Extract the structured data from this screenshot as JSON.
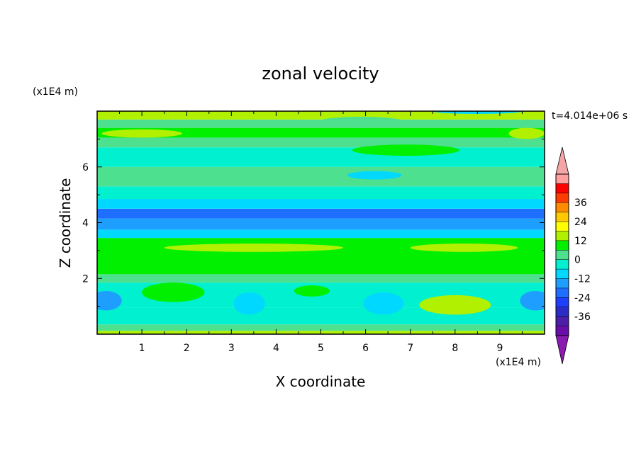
{
  "chart_data": {
    "type": "heatmap",
    "title": "zonal velocity",
    "xlabel": "X coordinate",
    "ylabel": "Z coordinate",
    "x_unit": "(x1E4 m)",
    "y_unit": "(x1E4 m)",
    "time_label": "t=4.014e+06 s",
    "xlim": [
      0,
      10
    ],
    "ylim": [
      0,
      8
    ],
    "x_ticks": [
      "1",
      "2",
      "3",
      "4",
      "5",
      "6",
      "7",
      "8",
      "9"
    ],
    "y_ticks": [
      "2",
      "4",
      "6"
    ],
    "colorbar": {
      "labels": [
        "36",
        "24",
        "12",
        "0",
        "-12",
        "-24",
        "-36"
      ],
      "levels": [
        -42,
        -36,
        -30,
        -24,
        -18,
        -12,
        -6,
        0,
        6,
        12,
        18,
        24,
        30,
        36,
        42
      ],
      "colors": [
        "#6a0dad",
        "#4b1fa8",
        "#2b2bc8",
        "#1f3fff",
        "#1e6fff",
        "#1e9fff",
        "#00d8ff",
        "#00f0d0",
        "#4ce08f",
        "#00f000",
        "#b0f000",
        "#ffff00",
        "#ffc800",
        "#ff8c00",
        "#ff3c00",
        "#ff0000",
        "#ffa0a0"
      ],
      "under_color": "#8a1ab0",
      "over_color": "#f4a6a6"
    },
    "bands": [
      {
        "z": [
          0.0,
          0.12
        ],
        "value": 14
      },
      {
        "z": [
          0.12,
          0.35
        ],
        "value": 4
      },
      {
        "z": [
          0.35,
          0.95
        ],
        "value": -4
      },
      {
        "z": [
          0.95,
          1.85
        ],
        "value": -1
      },
      {
        "z": [
          1.85,
          2.15
        ],
        "value": 3
      },
      {
        "z": [
          2.15,
          2.45
        ],
        "value": 8
      },
      {
        "z": [
          2.45,
          3.45
        ],
        "value": 11
      },
      {
        "z": [
          3.45,
          3.75
        ],
        "value": -9
      },
      {
        "z": [
          3.75,
          4.15
        ],
        "value": -14
      },
      {
        "z": [
          4.15,
          4.5
        ],
        "value": -20
      },
      {
        "z": [
          4.5,
          4.85
        ],
        "value": -12
      },
      {
        "z": [
          4.85,
          5.3
        ],
        "value": -6
      },
      {
        "z": [
          5.3,
          6.0
        ],
        "value": 2
      },
      {
        "z": [
          6.0,
          6.7
        ],
        "value": -3
      },
      {
        "z": [
          6.7,
          7.05
        ],
        "value": 2
      },
      {
        "z": [
          7.05,
          7.4
        ],
        "value": 10
      },
      {
        "z": [
          7.4,
          7.7
        ],
        "value": 4
      },
      {
        "z": [
          7.7,
          8.0
        ],
        "value": 13
      }
    ],
    "blobs": [
      {
        "x": 1.7,
        "z": 1.5,
        "rx": 0.7,
        "rz": 0.35,
        "value": 11
      },
      {
        "x": 4.8,
        "z": 1.55,
        "rx": 0.4,
        "rz": 0.2,
        "value": 11
      },
      {
        "x": 8.0,
        "z": 1.05,
        "rx": 0.8,
        "rz": 0.35,
        "value": 13
      },
      {
        "x": 0.2,
        "z": 1.2,
        "rx": 0.35,
        "rz": 0.35,
        "value": -13
      },
      {
        "x": 9.8,
        "z": 1.2,
        "rx": 0.35,
        "rz": 0.35,
        "value": -13
      },
      {
        "x": 3.4,
        "z": 1.1,
        "rx": 0.35,
        "rz": 0.4,
        "value": -8
      },
      {
        "x": 6.4,
        "z": 1.1,
        "rx": 0.45,
        "rz": 0.4,
        "value": -8
      },
      {
        "x": 5.9,
        "z": 7.6,
        "rx": 1.0,
        "rz": 0.2,
        "value": 2
      },
      {
        "x": 6.9,
        "z": 6.6,
        "rx": 1.2,
        "rz": 0.2,
        "value": 8
      },
      {
        "x": 1.0,
        "z": 7.2,
        "rx": 0.9,
        "rz": 0.15,
        "value": 13
      },
      {
        "x": 6.2,
        "z": 5.7,
        "rx": 0.6,
        "rz": 0.15,
        "value": -8
      },
      {
        "x": 3.5,
        "z": 3.1,
        "rx": 2.0,
        "rz": 0.15,
        "value": 14
      },
      {
        "x": 8.2,
        "z": 3.1,
        "rx": 1.2,
        "rz": 0.15,
        "value": 14
      },
      {
        "x": 9.6,
        "z": 7.2,
        "rx": 0.4,
        "rz": 0.2,
        "value": 13
      },
      {
        "x": 8.5,
        "z": 8.0,
        "rx": 1.0,
        "rz": 0.1,
        "value": -8
      }
    ]
  }
}
